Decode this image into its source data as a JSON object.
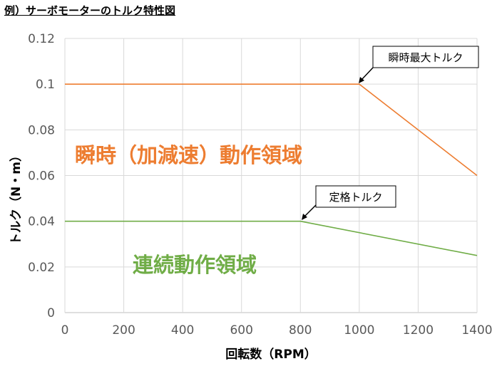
{
  "title": "例）サーボモーターのトルク特性図",
  "chart_data": {
    "type": "line",
    "xlabel": "回転数（RPM）",
    "ylabel": "トルク（N・m）",
    "xlim": [
      0,
      1400
    ],
    "ylim": [
      0,
      0.12
    ],
    "x_ticks": [
      0,
      200,
      400,
      600,
      800,
      1000,
      1200,
      1400
    ],
    "y_ticks": [
      0,
      0.02,
      0.04,
      0.06,
      0.08,
      0.1,
      0.12
    ],
    "x_tick_labels": [
      "0",
      "200",
      "400",
      "600",
      "800",
      "1000",
      "1200",
      "1400"
    ],
    "y_tick_labels": [
      "0",
      "0.02",
      "0.04",
      "0.06",
      "0.08",
      "0.1",
      "0.12"
    ],
    "grid": true,
    "series": [
      {
        "name": "瞬時最大トルク",
        "color": "#ED7D31",
        "points": [
          [
            0,
            0.1
          ],
          [
            1000,
            0.1
          ],
          [
            1400,
            0.06
          ]
        ]
      },
      {
        "name": "定格トルク",
        "color": "#70AD47",
        "points": [
          [
            0,
            0.04
          ],
          [
            800,
            0.04
          ],
          [
            1400,
            0.025
          ]
        ]
      }
    ],
    "annotations": [
      {
        "text": "瞬時最大トルク",
        "x": 1000,
        "y": 0.1
      },
      {
        "text": "定格トルク",
        "x": 800,
        "y": 0.04
      }
    ],
    "region_labels": [
      {
        "text": "瞬時（加減速）動作領域",
        "color": "#ED7D31"
      },
      {
        "text": "連続動作領域",
        "color": "#70AD47"
      }
    ]
  }
}
